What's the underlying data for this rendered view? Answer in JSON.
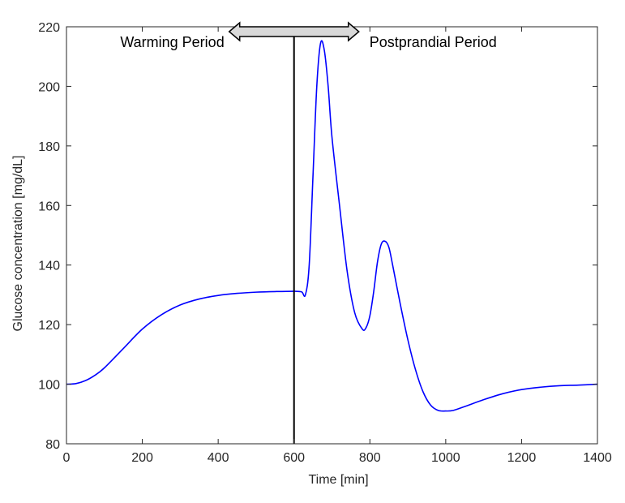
{
  "chart_data": {
    "type": "line",
    "title": "",
    "xlabel": "Time [min]",
    "ylabel": "Glucose concentration [mg/dL]",
    "xlim": [
      0,
      1400
    ],
    "ylim": [
      80,
      220
    ],
    "xticks": [
      0,
      200,
      400,
      600,
      800,
      1000,
      1200,
      1400
    ],
    "yticks": [
      80,
      100,
      120,
      140,
      160,
      180,
      200,
      220
    ],
    "grid": false,
    "series": [
      {
        "color": "#0000ff",
        "x": [
          0,
          25,
          50,
          75,
          100,
          150,
          200,
          250,
          300,
          350,
          400,
          450,
          500,
          550,
          600,
          620,
          630,
          640,
          650,
          660,
          670,
          680,
          690,
          700,
          720,
          740,
          760,
          780,
          790,
          800,
          810,
          820,
          830,
          840,
          850,
          860,
          880,
          900,
          920,
          940,
          960,
          980,
          1000,
          1020,
          1050,
          1100,
          1150,
          1200,
          1250,
          1300,
          1350,
          1400
        ],
        "y": [
          100,
          100.2,
          101.2,
          103,
          105.5,
          112,
          118.5,
          123.3,
          126.6,
          128.6,
          129.8,
          130.5,
          130.9,
          131.1,
          131.2,
          131,
          130,
          140,
          170,
          200,
          214.5,
          212,
          200,
          183,
          160,
          138,
          124,
          118.5,
          119,
          123,
          131,
          141,
          147,
          148,
          146,
          140,
          127,
          115,
          105,
          97.5,
          93,
          91.2,
          91,
          91.2,
          92.5,
          94.8,
          96.8,
          98.2,
          99,
          99.5,
          99.7,
          100
        ]
      }
    ],
    "annotations": {
      "divider_x": 600,
      "left_label": "Warming Period",
      "right_label": "Postprandial Period"
    }
  },
  "colors": {
    "line": "#0000ff",
    "axes": "#262626",
    "divider": "#000000",
    "arrow_fill": "#d9d9d9",
    "arrow_stroke": "#000000"
  }
}
